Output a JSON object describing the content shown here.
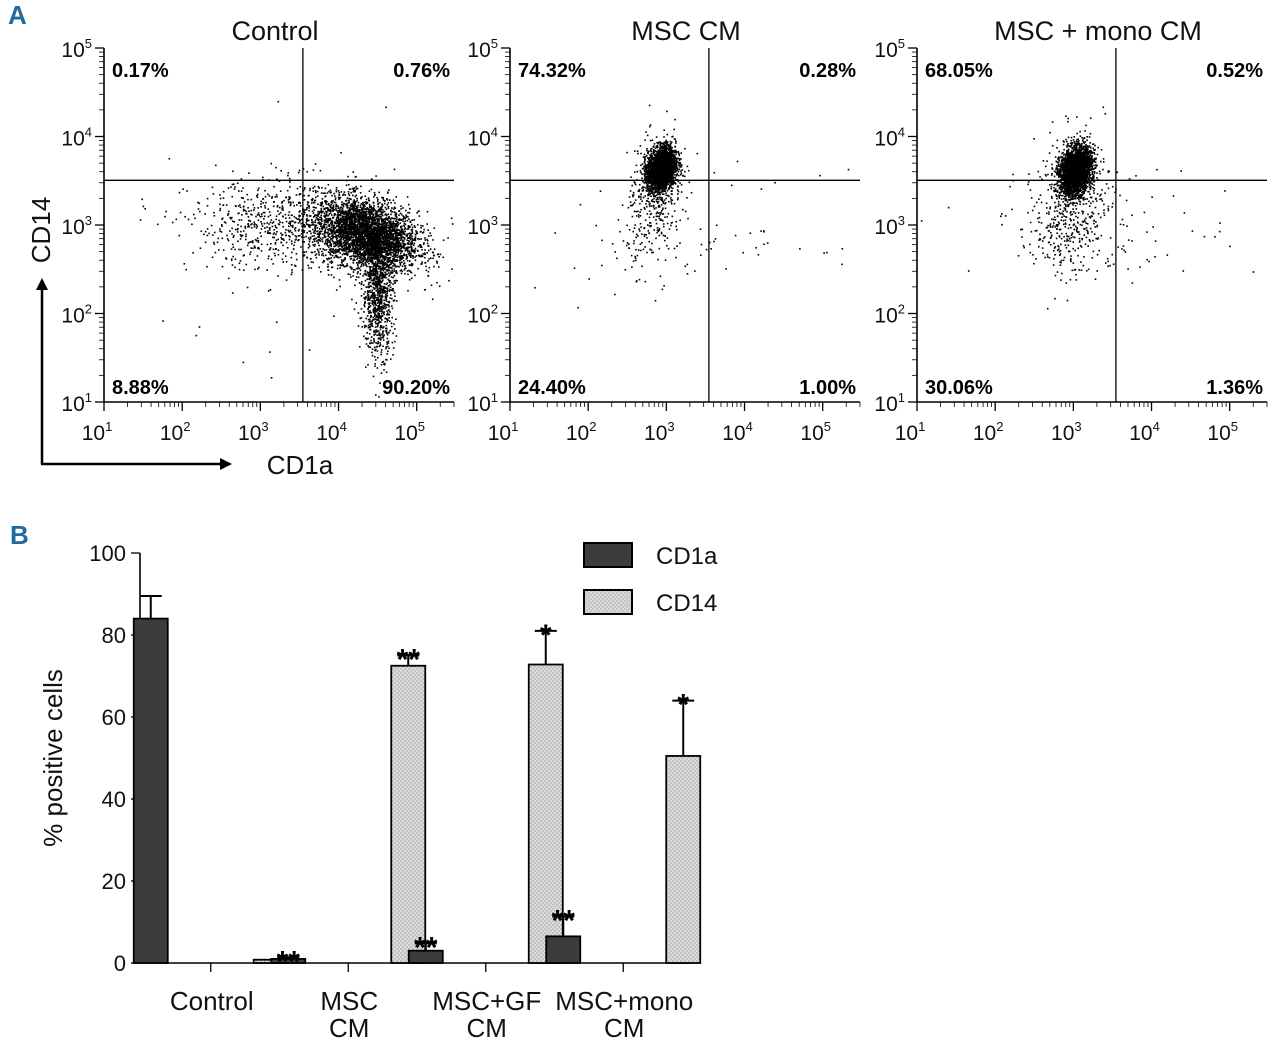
{
  "panel_labels": [
    "A",
    "B"
  ],
  "chart_data": [
    {
      "type": "scatter",
      "title": "Control",
      "xlabel": "CD1a",
      "ylabel": "CD14",
      "x_scale": "log",
      "y_scale": "log",
      "xlim": [
        10,
        300000
      ],
      "ylim": [
        10,
        100000
      ],
      "x_ticks": [
        "10^1",
        "10^2",
        "10^3",
        "10^4",
        "10^5"
      ],
      "y_ticks": [
        "10^1",
        "10^2",
        "10^3",
        "10^4",
        "10^5"
      ],
      "quadrant_gate": {
        "x": 3500,
        "y": 3200
      },
      "quadrant_percentages": {
        "upper_left": "0.17%",
        "upper_right": "0.76%",
        "lower_left": "8.88%",
        "lower_right": "90.20%"
      },
      "population_center": {
        "x": 30000,
        "y": 800
      }
    },
    {
      "type": "scatter",
      "title": "MSC CM",
      "x_scale": "log",
      "y_scale": "log",
      "xlim": [
        10,
        300000
      ],
      "ylim": [
        10,
        100000
      ],
      "x_ticks": [
        "10^1",
        "10^2",
        "10^3",
        "10^4",
        "10^5"
      ],
      "y_ticks": [
        "10^1",
        "10^2",
        "10^3",
        "10^4",
        "10^5"
      ],
      "quadrant_gate": {
        "x": 3500,
        "y": 3200
      },
      "quadrant_percentages": {
        "upper_left": "74.32%",
        "upper_right": "0.28%",
        "lower_left": "24.40%",
        "lower_right": "1.00%"
      },
      "population_center": {
        "x": 800,
        "y": 4500
      }
    },
    {
      "type": "scatter",
      "title": "MSC + mono CM",
      "x_scale": "log",
      "y_scale": "log",
      "xlim": [
        10,
        300000
      ],
      "ylim": [
        10,
        100000
      ],
      "x_ticks": [
        "10^1",
        "10^2",
        "10^3",
        "10^4",
        "10^5"
      ],
      "y_ticks": [
        "10^1",
        "10^2",
        "10^3",
        "10^4",
        "10^5"
      ],
      "quadrant_gate": {
        "x": 3500,
        "y": 3200
      },
      "quadrant_percentages": {
        "upper_left": "68.05%",
        "upper_right": "0.52%",
        "lower_left": "30.06%",
        "lower_right": "1.36%"
      },
      "population_center": {
        "x": 1000,
        "y": 4500
      }
    },
    {
      "type": "bar",
      "categories": [
        [
          "Control"
        ],
        [
          "MSC",
          "CM"
        ],
        [
          "MSC+GF",
          "CM"
        ],
        [
          "MSC+mono",
          "CM"
        ]
      ],
      "series": [
        {
          "name": "CD1a",
          "values": [
            84,
            1,
            3,
            6.5
          ],
          "errors": [
            5.5,
            0.3,
            1.8,
            4.8
          ],
          "significance": [
            "",
            "**",
            "**",
            "**"
          ],
          "color": "#3c3c3c"
        },
        {
          "name": "CD14",
          "values": [
            0.8,
            72.5,
            72.8,
            50.5
          ],
          "errors": [
            0,
            2.5,
            8.2,
            13.5
          ],
          "significance": [
            "",
            "**",
            "*",
            "*"
          ],
          "color": "#d7d7d7"
        }
      ],
      "ylabel": "% positive cells",
      "ylim": [
        0,
        100
      ],
      "y_ticks": [
        "0",
        "20",
        "40",
        "60",
        "80",
        "100"
      ],
      "legend_position": "top-right"
    }
  ]
}
